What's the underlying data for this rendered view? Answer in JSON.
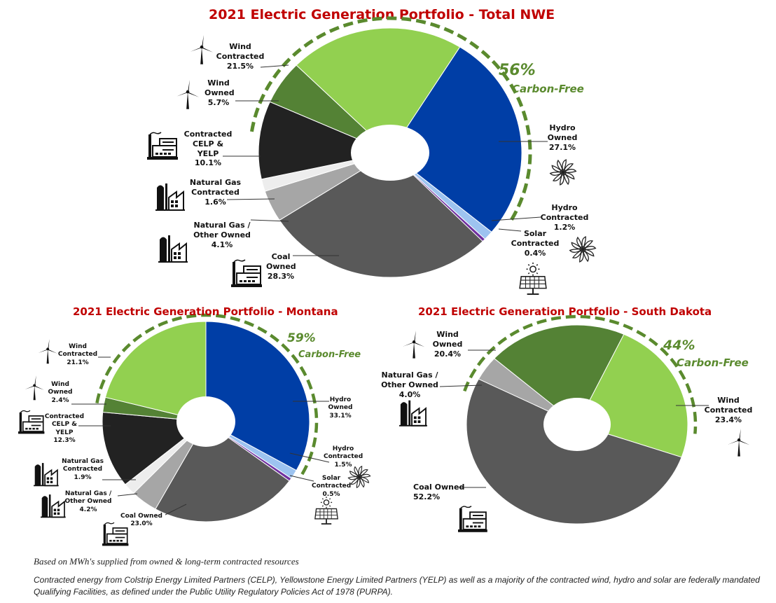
{
  "chart_data": [
    {
      "type": "pie",
      "title": "2021 Electric Generation Portfolio - Total NWE",
      "carbon_free": {
        "percent": "56%",
        "label": "Carbon-Free"
      },
      "slices": [
        {
          "label": "Hydro Owned",
          "value": 27.1,
          "value_text": "27.1%",
          "color": "#003ea6"
        },
        {
          "label": "Hydro Contracted",
          "value": 1.2,
          "value_text": "1.2%",
          "color": "#9dc3f0"
        },
        {
          "label": "Solar Contracted",
          "value": 0.4,
          "value_text": "0.4%",
          "color": "#7030a0"
        },
        {
          "label": "Coal Owned",
          "value": 28.3,
          "value_text": "28.3%",
          "color": "#595959"
        },
        {
          "label": "Natural Gas / Other Owned",
          "value": 4.1,
          "value_text": "4.1%",
          "color": "#a6a6a6"
        },
        {
          "label": "Natural Gas Contracted",
          "value": 1.6,
          "value_text": "1.6%",
          "color": "#ededed"
        },
        {
          "label": "Contracted CELP & YELP",
          "value": 10.1,
          "value_text": "10.1%",
          "color": "#222222"
        },
        {
          "label": "Wind Owned",
          "value": 5.7,
          "value_text": "5.7%",
          "color": "#548235"
        },
        {
          "label": "Wind Contracted",
          "value": 21.5,
          "value_text": "21.5%",
          "color": "#92d050"
        }
      ]
    },
    {
      "type": "pie",
      "title": "2021 Electric Generation Portfolio - Montana",
      "carbon_free": {
        "percent": "59%",
        "label": "Carbon-Free"
      },
      "slices": [
        {
          "label": "Hydro Owned",
          "value": 33.1,
          "value_text": "33.1%",
          "color": "#003ea6"
        },
        {
          "label": "Hydro Contracted",
          "value": 1.5,
          "value_text": "1.5%",
          "color": "#9dc3f0"
        },
        {
          "label": "Solar Contracted",
          "value": 0.5,
          "value_text": "0.5%",
          "color": "#7030a0"
        },
        {
          "label": "Coal Owned",
          "value": 23.0,
          "value_text": "23.0%",
          "color": "#595959"
        },
        {
          "label": "Natural Gas / Other Owned",
          "value": 4.2,
          "value_text": "4.2%",
          "color": "#a6a6a6"
        },
        {
          "label": "Natural Gas Contracted",
          "value": 1.9,
          "value_text": "1.9%",
          "color": "#ededed"
        },
        {
          "label": "Contracted CELP & YELP",
          "value": 12.3,
          "value_text": "12.3%",
          "color": "#222222"
        },
        {
          "label": "Wind Owned",
          "value": 2.4,
          "value_text": "2.4%",
          "color": "#548235"
        },
        {
          "label": "Wind Contracted",
          "value": 21.1,
          "value_text": "21.1%",
          "color": "#92d050"
        }
      ]
    },
    {
      "type": "pie",
      "title": "2021 Electric Generation Portfolio - South Dakota",
      "carbon_free": {
        "percent": "44%",
        "label": "Carbon-Free"
      },
      "slices": [
        {
          "label": "Wind Contracted",
          "value": 23.4,
          "value_text": "23.4%",
          "color": "#92d050"
        },
        {
          "label": "Coal Owned",
          "value": 52.2,
          "value_text": "52.2%",
          "color": "#595959"
        },
        {
          "label": "Natural Gas / Other Owned",
          "value": 4.0,
          "value_text": "4.0%",
          "color": "#a6a6a6"
        },
        {
          "label": "Wind Owned",
          "value": 20.4,
          "value_text": "20.4%",
          "color": "#548235"
        }
      ]
    }
  ],
  "footnotes": {
    "line1": "Based on MWh's supplied from owned & long-term contracted resources",
    "line2": "Contracted energy from Colstrip Energy Limited Partners (CELP), Yellowstone Energy Limited Partners (YELP) as well as a majority of the contracted wind, hydro and solar are federally mandated Qualifying Facilities, as defined under the Public Utility Regulatory Policies Act of 1978 (PURPA)."
  }
}
